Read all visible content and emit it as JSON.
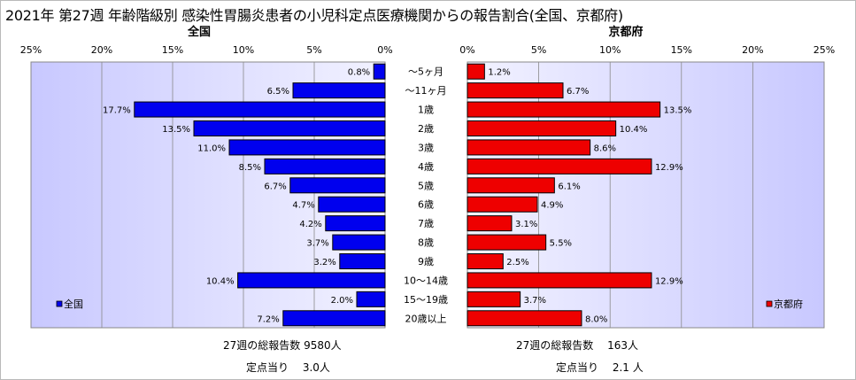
{
  "title": "2021年 第27週 年齢階級別 感染性胃腸炎患者の小児科定点医療機関からの報告割合(全国、京都府)",
  "chart_data": {
    "type": "bar",
    "orientation": "horizontal-butterfly",
    "categories": [
      "～5ヶ月",
      "～11ヶ月",
      "1歳",
      "2歳",
      "3歳",
      "4歳",
      "5歳",
      "6歳",
      "7歳",
      "8歳",
      "9歳",
      "10～14歳",
      "15～19歳",
      "20歳以上"
    ],
    "xlim": [
      0,
      25
    ],
    "ticks": [
      "0%",
      "5%",
      "10%",
      "15%",
      "20%",
      "25%"
    ],
    "grid": true,
    "series": [
      {
        "name": "全国",
        "panel_title": "全国",
        "color": "#0000ee",
        "values": [
          0.8,
          6.5,
          17.7,
          13.5,
          11.0,
          8.5,
          6.7,
          4.7,
          4.2,
          3.7,
          3.2,
          10.4,
          2.0,
          7.2
        ],
        "labels": [
          "0.8%",
          "6.5%",
          "17.7%",
          "13.5%",
          "11.0%",
          "8.5%",
          "6.7%",
          "4.7%",
          "4.2%",
          "3.7%",
          "3.2%",
          "10.4%",
          "2.0%",
          "7.2%"
        ],
        "legend_position": "bottom-left",
        "summary_total": "27週の総報告数 9580人",
        "summary_per_site": "定点当り　 3.0人"
      },
      {
        "name": "京都府",
        "panel_title": "京都府",
        "color": "#ee0000",
        "values": [
          1.2,
          6.7,
          13.5,
          10.4,
          8.6,
          12.9,
          6.1,
          4.9,
          3.1,
          5.5,
          2.5,
          12.9,
          3.7,
          8.0
        ],
        "labels": [
          "1.2%",
          "6.7%",
          "13.5%",
          "10.4%",
          "8.6%",
          "12.9%",
          "6.1%",
          "4.9%",
          "3.1%",
          "5.5%",
          "2.5%",
          "12.9%",
          "3.7%",
          "8.0%"
        ],
        "legend_position": "bottom-right",
        "summary_total": "27週の総報告数　 163人",
        "summary_per_site": "定点当り　 2.1 人"
      }
    ]
  },
  "colors": {
    "plot_bg_left": "#ccccff",
    "plot_bg_right": "#ccccff",
    "plot_bg_mid": "#eeeeff",
    "bar_outline": "#000000"
  }
}
